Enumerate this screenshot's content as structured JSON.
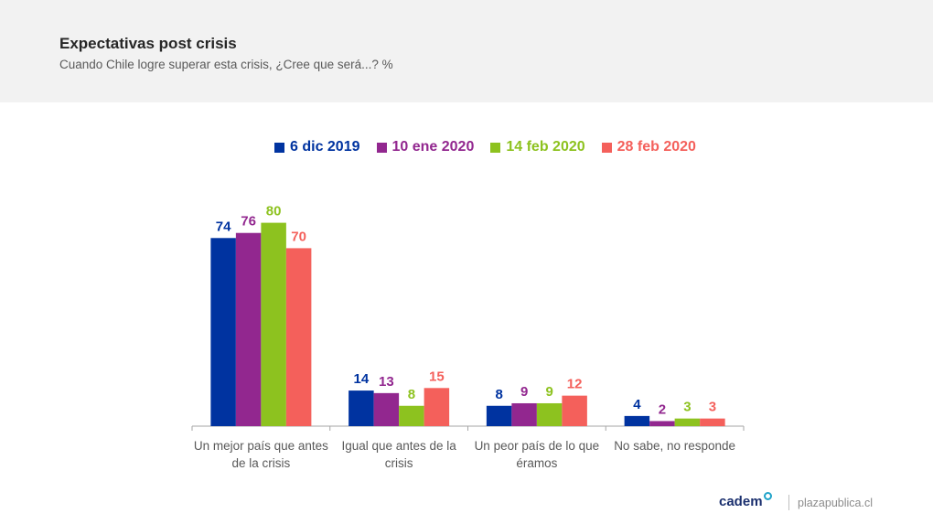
{
  "header": {
    "title": "Expectativas post crisis",
    "subtitle": "Cuando Chile logre superar esta crisis, ¿Cree que será...? %"
  },
  "legend": [
    {
      "label": "6 dic 2019",
      "color": "#0033a0"
    },
    {
      "label": "10 ene 2020",
      "color": "#92278f"
    },
    {
      "label": "14 feb 2020",
      "color": "#8dc21f"
    },
    {
      "label": "28 feb 2020",
      "color": "#f4605b"
    }
  ],
  "chart_data": {
    "type": "bar",
    "categories": [
      [
        "Un mejor país que antes",
        "de la crisis"
      ],
      [
        "Igual que antes de la",
        "crisis"
      ],
      [
        "Un peor país de lo que",
        "éramos"
      ],
      [
        "No sabe, no responde"
      ]
    ],
    "series": [
      {
        "name": "6 dic 2019",
        "color": "#0033a0",
        "values": [
          74,
          14,
          8,
          4
        ]
      },
      {
        "name": "10 ene 2020",
        "color": "#92278f",
        "values": [
          76,
          13,
          9,
          2
        ]
      },
      {
        "name": "14 feb 2020",
        "color": "#8dc21f",
        "values": [
          80,
          8,
          9,
          3
        ]
      },
      {
        "name": "28 feb 2020",
        "color": "#f4605b",
        "values": [
          70,
          15,
          12,
          3
        ]
      }
    ],
    "ylim": [
      0,
      80
    ],
    "grid": false,
    "legend_position": "top"
  },
  "footer": {
    "brand": "cadem",
    "site": "plazapublica.cl"
  }
}
